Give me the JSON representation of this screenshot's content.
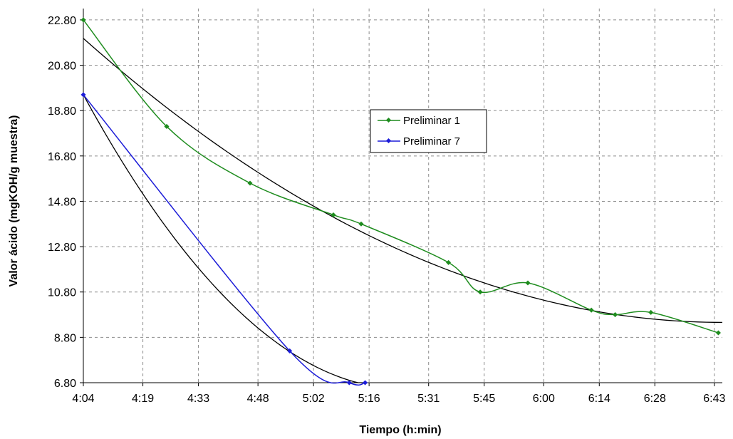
{
  "chart_data": {
    "type": "line",
    "title": "",
    "xlabel": "Tiempo (h:min)",
    "ylabel": "Valor ácido (mgKOH/g muestra)",
    "x_tick_labels": [
      "4:04",
      "4:19",
      "4:33",
      "4:48",
      "5:02",
      "5:16",
      "5:31",
      "5:45",
      "6:00",
      "6:14",
      "6:28",
      "6:43"
    ],
    "x_tick_minutes": [
      244,
      259,
      273,
      288,
      302,
      316,
      331,
      345,
      360,
      374,
      388,
      403
    ],
    "xlim": [
      "4:04",
      "6:45"
    ],
    "y_tick_labels": [
      "6.80",
      "8.80",
      "10.80",
      "12.80",
      "14.80",
      "16.80",
      "18.80",
      "20.80",
      "22.80"
    ],
    "ylim": [
      6.8,
      23.3
    ],
    "grid": true,
    "legend_position": "center-right",
    "series": [
      {
        "name": "Preliminar 1",
        "color": "#1e8c1e",
        "x": [
          "4:04",
          "4:25",
          "4:46",
          "5:07",
          "5:14",
          "5:36",
          "5:44",
          "5:56",
          "6:12",
          "6:18",
          "6:27",
          "6:44"
        ],
        "y": [
          22.8,
          18.1,
          15.6,
          14.2,
          13.8,
          12.1,
          10.8,
          11.2,
          10.0,
          9.8,
          9.9,
          9.0
        ]
      },
      {
        "name": "Preliminar 7",
        "color": "#1c1cd8",
        "x": [
          "4:04",
          "4:56",
          "5:11",
          "5:15"
        ],
        "y": [
          19.5,
          8.2,
          6.8,
          6.8
        ]
      }
    ],
    "trendlines": [
      {
        "color": "#000000",
        "type": "fit",
        "for_series": "Preliminar 1"
      },
      {
        "color": "#000000",
        "type": "fit",
        "for_series": "Preliminar 7"
      }
    ]
  }
}
